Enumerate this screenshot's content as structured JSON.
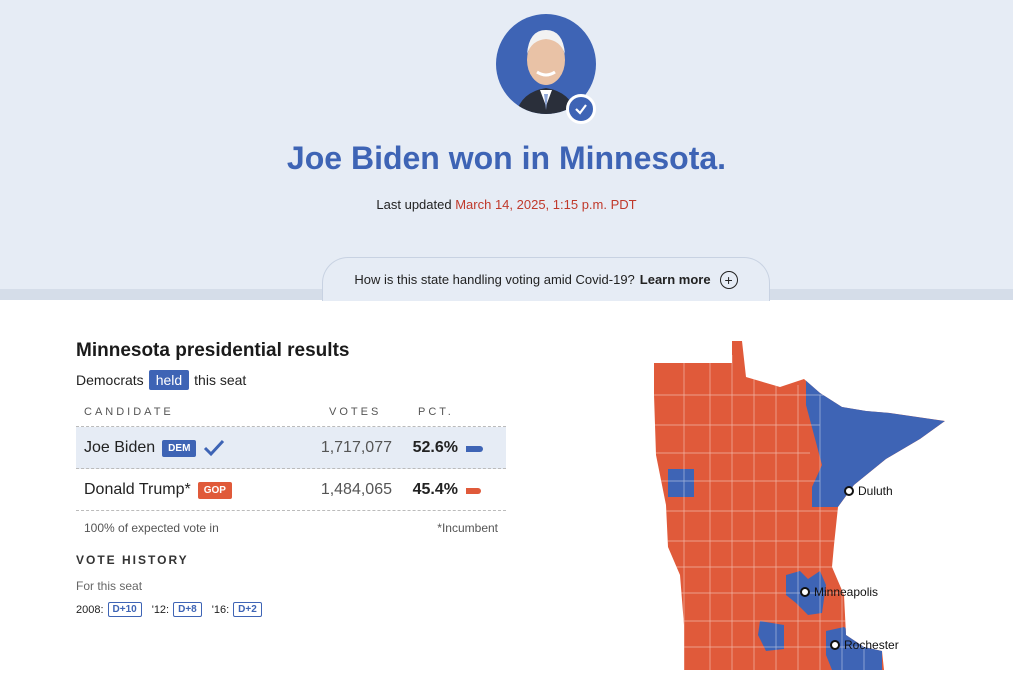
{
  "hero": {
    "headline": "Joe Biden won in Minnesota.",
    "updated_prefix": "Last updated",
    "updated_time": "March 14, 2025, 1:15 p.m. PDT",
    "covid_text": "How is this state handling voting amid Covid-19?",
    "covid_link": "Learn more"
  },
  "results": {
    "title": "Minnesota presidential results",
    "held_prefix": "Democrats",
    "held_badge": "held",
    "held_suffix": "this seat",
    "col_candidate": "CANDIDATE",
    "col_votes": "VOTES",
    "col_pct": "PCT.",
    "rows": [
      {
        "name": "Joe Biden",
        "party": "DEM",
        "votes": "1,717,077",
        "pct": "52.6%",
        "share": 0.526,
        "winner": true
      },
      {
        "name": "Donald Trump*",
        "party": "GOP",
        "votes": "1,484,065",
        "pct": "45.4%",
        "share": 0.454,
        "winner": false
      }
    ],
    "expected": "100% of expected vote in",
    "incumbent": "*Incumbent"
  },
  "history": {
    "title": "VOTE HISTORY",
    "subtitle": "For this seat",
    "entries": [
      {
        "year": "2008:",
        "margin": "D+10"
      },
      {
        "year": "'12:",
        "margin": "D+8"
      },
      {
        "year": "'16:",
        "margin": "D+2"
      }
    ]
  },
  "map": {
    "cities": [
      "Duluth",
      "Minneapolis",
      "Rochester"
    ]
  },
  "colors": {
    "dem": "#3e64b5",
    "gop": "#e05a3a"
  }
}
